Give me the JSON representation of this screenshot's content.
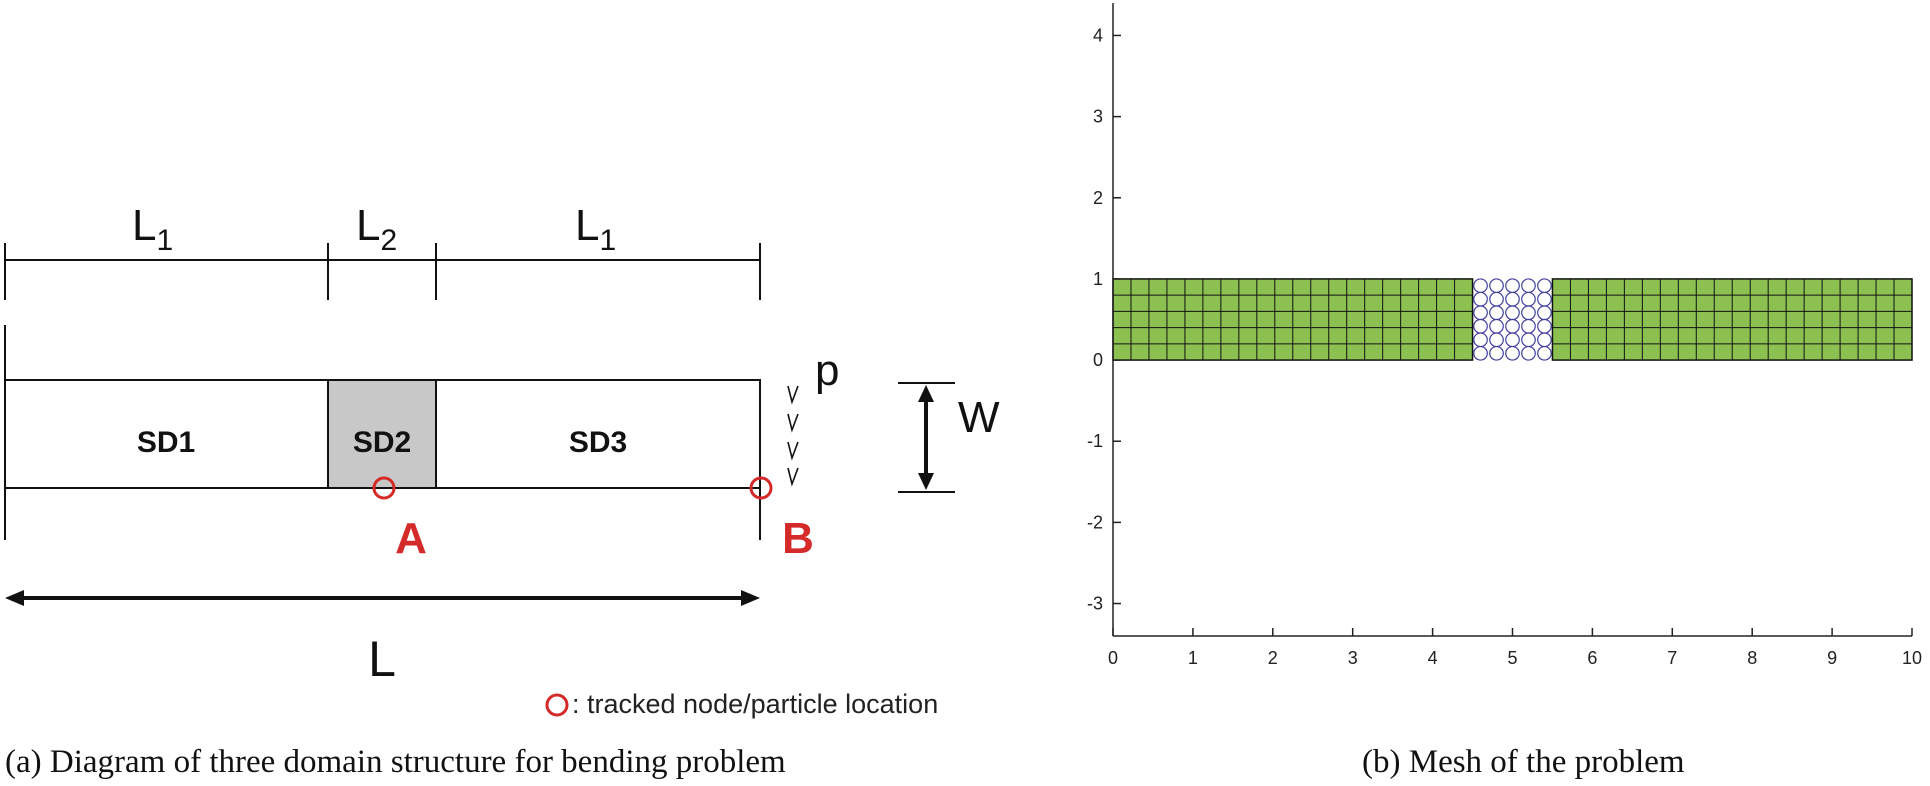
{
  "diagram": {
    "dim_labels": {
      "l1_left": "L",
      "l1_left_sub": "1",
      "l2": "L",
      "l2_sub": "2",
      "l1_right": "L",
      "l1_right_sub": "1"
    },
    "subdomains": [
      {
        "label": "SD1",
        "fill": "#ffffff"
      },
      {
        "label": "SD2",
        "fill": "#c8c8c8"
      },
      {
        "label": "SD3",
        "fill": "#ffffff"
      }
    ],
    "load_label": "p",
    "width_label": "W",
    "length_label": "L",
    "point_a": "A",
    "point_b": "B",
    "legend_text": ": tracked node/particle location",
    "marker_color": "#d42a2a",
    "caption": "(a)  Diagram of three domain structure for bending problem"
  },
  "mesh_plot": {
    "caption": "(b)  Mesh of the problem",
    "x_ticks": [
      "0",
      "1",
      "2",
      "3",
      "4",
      "5",
      "6",
      "7",
      "8",
      "9",
      "10"
    ],
    "y_ticks": [
      "4",
      "3",
      "2",
      "1",
      "0",
      "-1",
      "-2",
      "-3"
    ],
    "xlim": [
      0,
      10
    ],
    "ylim": [
      -3.4,
      4.4
    ],
    "fe_fill": "#8cc152",
    "particle_color": "#4040a0",
    "regions": [
      {
        "type": "fe-mesh",
        "x": [
          0,
          4.5
        ],
        "y": [
          0,
          1
        ],
        "cols": 20,
        "rows": 5
      },
      {
        "type": "particles",
        "x": [
          4.5,
          5.5
        ],
        "y": [
          0,
          1
        ],
        "cols": 5,
        "rows": 6
      },
      {
        "type": "fe-mesh",
        "x": [
          5.5,
          10
        ],
        "y": [
          0,
          1
        ],
        "cols": 20,
        "rows": 5
      }
    ]
  }
}
